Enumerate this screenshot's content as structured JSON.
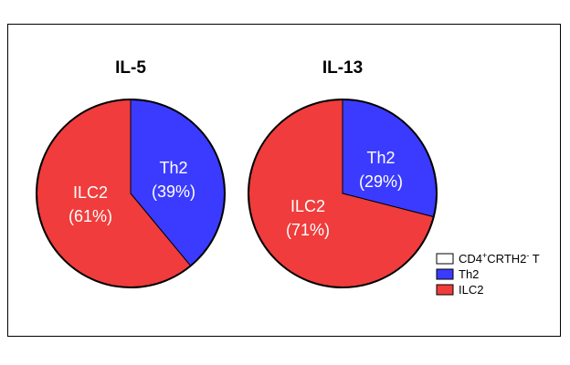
{
  "chart_data": [
    {
      "type": "pie",
      "title": "IL-5",
      "slices": [
        {
          "category": "CD4+CRTH2- T",
          "value": 0,
          "color": "#ffffff",
          "label": []
        },
        {
          "category": "Th2",
          "value": 39,
          "color": "#3b3bff",
          "label": [
            "Th2",
            "(39%)"
          ]
        },
        {
          "category": "ILC2",
          "value": 61,
          "color": "#f03c3c",
          "label": [
            "ILC2",
            "(61%)"
          ]
        }
      ]
    },
    {
      "type": "pie",
      "title": "IL-13",
      "slices": [
        {
          "category": "CD4+CRTH2- T",
          "value": 0,
          "color": "#ffffff",
          "label": []
        },
        {
          "category": "Th2",
          "value": 29,
          "color": "#3b3bff",
          "label": [
            "Th2",
            "(29%)"
          ]
        },
        {
          "category": "ILC2",
          "value": 71,
          "color": "#f03c3c",
          "label": [
            "ILC2",
            "(71%)"
          ]
        }
      ]
    }
  ],
  "legend": {
    "placement": "bottom-right",
    "items": [
      {
        "base": "CD4",
        "sup1": "+",
        "mid": "CRTH2",
        "sup2": "-",
        "tail": " T",
        "color": "#ffffff"
      },
      {
        "base": "Th2",
        "sup1": "",
        "mid": "",
        "sup2": "",
        "tail": "",
        "color": "#3b3bff"
      },
      {
        "base": "ILC2",
        "sup1": "",
        "mid": "",
        "sup2": "",
        "tail": "",
        "color": "#f03c3c"
      }
    ]
  }
}
